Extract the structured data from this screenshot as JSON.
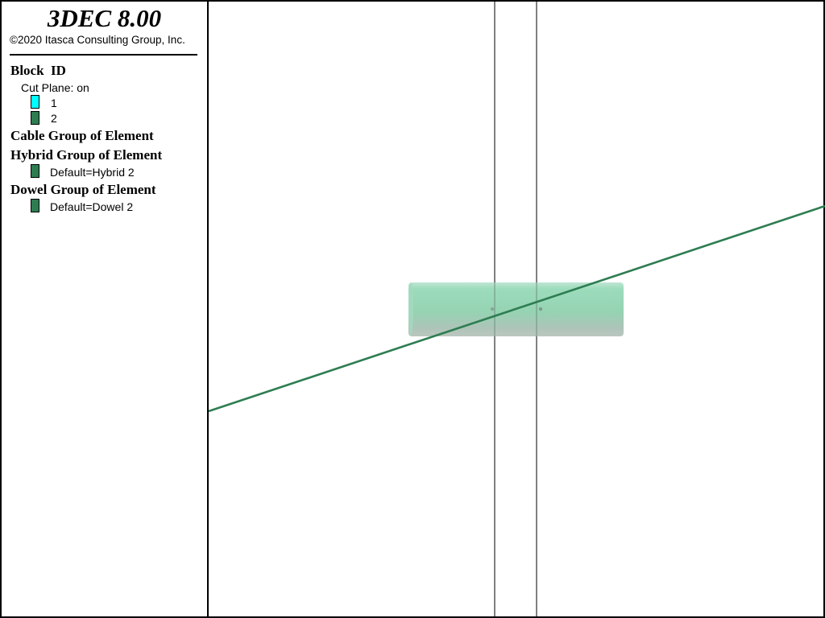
{
  "app": {
    "title": "3DEC 8.00",
    "copyright": "©2020 Itasca Consulting Group, Inc."
  },
  "legend": {
    "block_id": {
      "heading": "Block  ID",
      "cut_plane": "Cut Plane: on",
      "items": [
        {
          "label": "1",
          "color": "#00ffff"
        },
        {
          "label": "2",
          "color": "#2e7d52"
        }
      ]
    },
    "cable_group": {
      "heading": "Cable Group of Element"
    },
    "hybrid_group": {
      "heading": "Hybrid Group of Element",
      "items": [
        {
          "label": "Default=Hybrid 2",
          "color": "#2e7d52"
        }
      ]
    },
    "dowel_group": {
      "heading": "Dowel Group of Element",
      "items": [
        {
          "label": "Default=Dowel 2",
          "color": "#2e7d52"
        }
      ]
    }
  },
  "colors": {
    "frame": "#000000",
    "background": "#ffffff",
    "element_line": "#2e7d52",
    "cylinder_fill": "#8fd6b4",
    "cylinder_shade": "#a9b9b0"
  }
}
